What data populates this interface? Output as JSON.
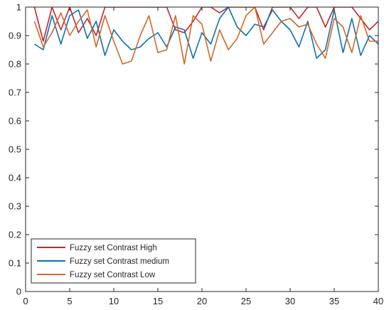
{
  "chart_data": {
    "type": "line",
    "title": "",
    "xlabel": "",
    "ylabel": "",
    "xlim": [
      0,
      40
    ],
    "ylim": [
      0,
      1
    ],
    "x_ticks": [
      "0",
      "5",
      "10",
      "15",
      "20",
      "25",
      "30",
      "35",
      "40"
    ],
    "y_ticks": [
      "0",
      "0.1",
      "0.2",
      "0.3",
      "0.4",
      "0.5",
      "0.6",
      "0.7",
      "0.8",
      "0.9",
      "1"
    ],
    "grid": false,
    "legend_position": "bottom-left",
    "x": [
      1,
      2,
      3,
      4,
      5,
      6,
      7,
      8,
      9,
      10,
      11,
      12,
      13,
      14,
      15,
      16,
      17,
      18,
      19,
      20,
      21,
      22,
      23,
      24,
      25,
      26,
      27,
      28,
      29,
      30,
      31,
      32,
      33,
      34,
      35,
      36,
      37,
      38,
      39,
      40
    ],
    "series": [
      {
        "name": "Fuzzy set Contrast High",
        "color": "#C0272D",
        "values": [
          1.0,
          0.88,
          1.0,
          0.92,
          1.0,
          0.91,
          0.96,
          0.9,
          1.0,
          1.0,
          1.0,
          1.0,
          1.0,
          1.0,
          1.0,
          1.0,
          0.92,
          0.91,
          0.95,
          1.0,
          1.0,
          0.98,
          1.0,
          1.0,
          1.0,
          1.0,
          0.92,
          1.0,
          1.0,
          1.0,
          0.96,
          1.0,
          1.0,
          0.93,
          1.0,
          1.0,
          1.0,
          0.96,
          0.92,
          0.95
        ]
      },
      {
        "name": "Fuzzy set Contrast medium",
        "color": "#0E72AE",
        "values": [
          0.87,
          0.85,
          0.97,
          0.87,
          0.97,
          0.99,
          0.89,
          0.95,
          0.83,
          0.92,
          0.88,
          0.85,
          0.86,
          0.89,
          0.91,
          0.86,
          0.93,
          0.92,
          0.82,
          0.91,
          0.87,
          0.96,
          1.0,
          0.93,
          0.9,
          0.94,
          0.93,
          0.99,
          0.95,
          0.92,
          0.86,
          0.95,
          0.82,
          0.85,
          0.99,
          0.84,
          0.96,
          0.83,
          0.9,
          0.87
        ]
      },
      {
        "name": "Fuzzy set Contrast Low",
        "color": "#D0692A",
        "values": [
          0.95,
          0.86,
          0.91,
          0.98,
          0.9,
          0.95,
          0.99,
          0.86,
          0.97,
          0.88,
          0.8,
          0.81,
          0.9,
          0.97,
          0.84,
          0.85,
          0.97,
          0.8,
          0.97,
          0.94,
          0.81,
          0.92,
          0.85,
          0.89,
          0.97,
          1.0,
          0.87,
          0.91,
          0.95,
          0.96,
          0.93,
          0.94,
          0.87,
          0.82,
          0.96,
          0.93,
          0.84,
          0.97,
          0.88,
          0.88
        ]
      }
    ]
  }
}
